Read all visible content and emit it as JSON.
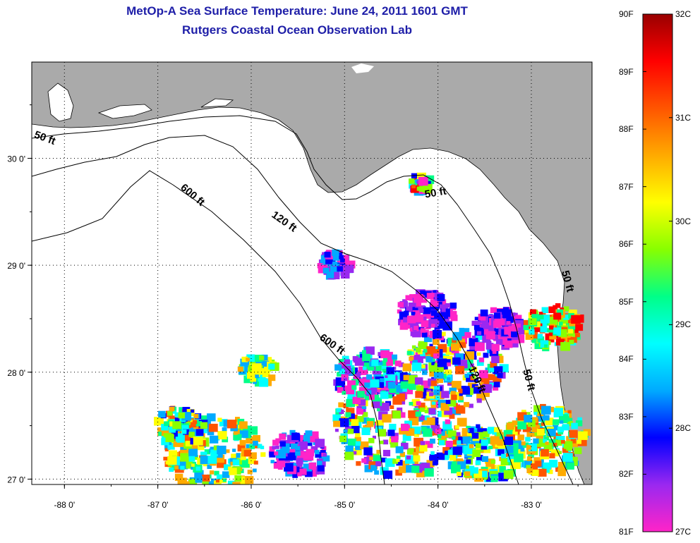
{
  "header": {
    "title": "MetOp-A Sea Surface Temperature:  June 24, 2011 1601 GMT",
    "subtitle": "Rutgers Coastal Ocean Observation Lab"
  },
  "map": {
    "lon_ticks": [
      "-88 0'",
      "-87 0'",
      "-86 0'",
      "-85 0'",
      "-84 0'",
      "-83 0'"
    ],
    "lat_ticks": [
      "30 0'",
      "29 0'",
      "28 0'",
      "27 0'"
    ],
    "lon_range": [
      -88.35,
      -82.35
    ],
    "lat_range": [
      26.95,
      30.9
    ],
    "contour_labels": [
      "50 ft",
      "600 ft",
      "120 ft",
      "50 ft",
      "600 ft",
      "120 ft",
      "50 ft",
      "50 ft"
    ],
    "colors": {
      "land": "#aaaaaa",
      "ocean_nodata": "#ffffff",
      "grid": "#000000"
    }
  },
  "colorbar": {
    "f_labels": [
      "90F",
      "89F",
      "88F",
      "87F",
      "86F",
      "85F",
      "84F",
      "83F",
      "82F",
      "81F"
    ],
    "c_labels": [
      "32C",
      "31C",
      "30C",
      "29C",
      "28C",
      "27C"
    ],
    "f_range": [
      81,
      90
    ],
    "c_range": [
      27,
      32
    ],
    "stops": [
      "#ff24c8",
      "#9a28f0",
      "#0000ff",
      "#00aaff",
      "#00ffff",
      "#00ff88",
      "#88ff00",
      "#ffff00",
      "#ffaa00",
      "#ff5500",
      "#ff0000",
      "#990000"
    ]
  }
}
